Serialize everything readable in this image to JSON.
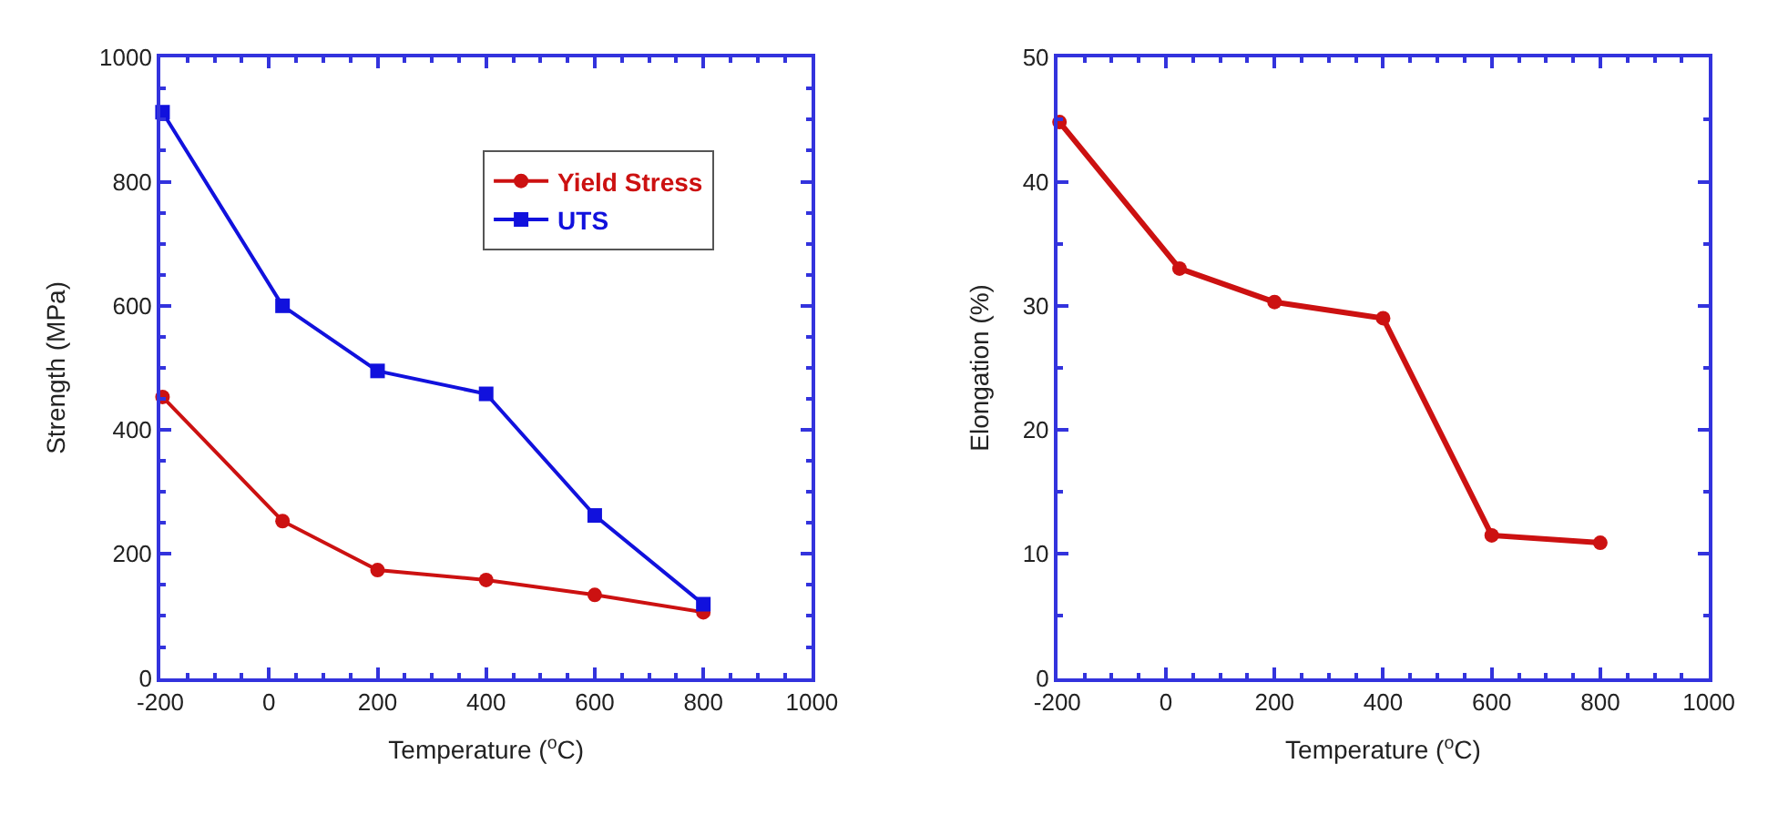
{
  "chart_data": [
    {
      "type": "line",
      "xlabel": "Temperature ($^{o}$C)",
      "ylabel": "Strength (MPa)",
      "xlim": [
        -200,
        1000
      ],
      "xticks": [
        -200,
        0,
        200,
        400,
        600,
        800,
        1000
      ],
      "ylim": [
        0,
        1000
      ],
      "yticks": [
        0,
        200,
        400,
        600,
        800,
        1000
      ],
      "legend": "top right",
      "marker": "circle",
      "line_style": "solid",
      "x": [
        -196,
        25,
        200,
        400,
        600,
        800
      ],
      "series": [
        {
          "name": "Yield Stress",
          "color": "#cc1111",
          "marker": "circle",
          "values": [
            453,
            253,
            174,
            158,
            134,
            106
          ]
        },
        {
          "name": "UTS",
          "color": "#1111dd",
          "marker": "square",
          "values": [
            912,
            600,
            495,
            458,
            262,
            119
          ]
        }
      ]
    },
    {
      "type": "line",
      "xlabel": "Temperature ($^{o}$C)",
      "ylabel": "Elongation (%)",
      "xlim": [
        -200,
        1000
      ],
      "xticks": [
        -200,
        0,
        200,
        400,
        600,
        800,
        1000
      ],
      "ylim": [
        0,
        50
      ],
      "yticks": [
        0,
        10,
        20,
        30,
        40,
        50
      ],
      "legend": false,
      "marker": "circle",
      "line_style": "solid",
      "x": [
        -196,
        25,
        200,
        400,
        600,
        800
      ],
      "series": [
        {
          "color": "#cc1111",
          "values": [
            44.8,
            33.0,
            30.3,
            29.0,
            11.5,
            10.9
          ]
        }
      ]
    }
  ]
}
